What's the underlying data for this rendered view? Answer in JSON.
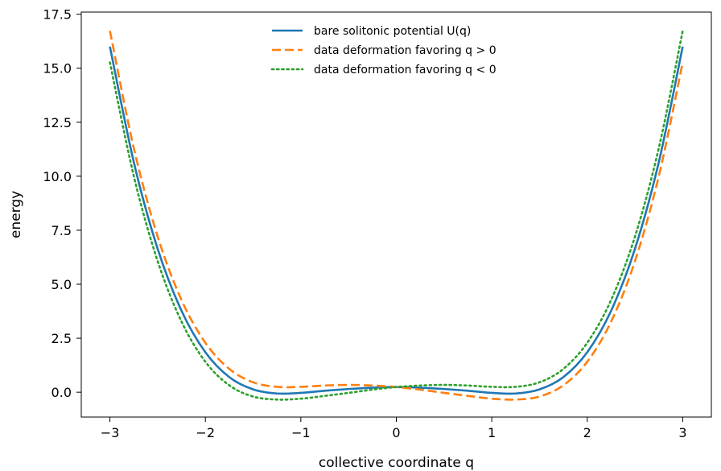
{
  "chart_data": {
    "type": "line",
    "xlabel": "collective coordinate q",
    "ylabel": "energy",
    "xlim": [
      -3.3,
      3.3
    ],
    "ylim": [
      -1.15,
      17.6
    ],
    "xticks": [
      -3,
      -2,
      -1,
      0,
      1,
      2,
      3
    ],
    "yticks": [
      0.0,
      2.5,
      5.0,
      7.5,
      10.0,
      12.5,
      15.0,
      17.5
    ],
    "xtick_labels": [
      "−3",
      "−2",
      "−1",
      "0",
      "1",
      "2",
      "3"
    ],
    "ytick_labels": [
      "0.0",
      "2.5",
      "5.0",
      "7.5",
      "10.0",
      "12.5",
      "15.0",
      "17.5"
    ],
    "grid": false,
    "legend_position": "top-center",
    "x": [
      -3.0,
      -2.75,
      -2.5,
      -2.25,
      -2.0,
      -1.75,
      -1.5,
      -1.25,
      -1.0,
      -0.75,
      -0.5,
      -0.25,
      0.0,
      0.25,
      0.5,
      0.75,
      1.0,
      1.25,
      1.5,
      1.75,
      2.0,
      2.25,
      2.5,
      2.75,
      3.0
    ],
    "series": [
      {
        "name": "bare solitonic potential U(q)",
        "color": "#1f77b4",
        "style": "solid",
        "values": [
          16.0,
          10.66,
          6.64,
          3.77,
          1.85,
          0.7,
          0.13,
          -0.06,
          -0.03,
          0.07,
          0.15,
          0.21,
          0.24,
          0.21,
          0.15,
          0.07,
          -0.03,
          -0.06,
          0.13,
          0.7,
          1.85,
          3.77,
          6.64,
          10.66,
          16.0
        ]
      },
      {
        "name": "data deformation favoring q > 0",
        "color": "#ff7f0e",
        "style": "dashed",
        "values": [
          16.73,
          11.31,
          7.21,
          4.27,
          2.29,
          1.08,
          0.46,
          0.25,
          0.25,
          0.31,
          0.34,
          0.31,
          0.24,
          0.12,
          -0.03,
          -0.17,
          -0.3,
          -0.34,
          -0.2,
          0.32,
          1.41,
          3.27,
          6.07,
          10.01,
          15.27
        ]
      },
      {
        "name": "data deformation favoring q < 0",
        "color": "#2ca02c",
        "style": "dotted",
        "values": [
          15.27,
          10.01,
          6.07,
          3.27,
          1.41,
          0.32,
          -0.2,
          -0.34,
          -0.3,
          -0.17,
          -0.03,
          0.12,
          0.24,
          0.31,
          0.34,
          0.31,
          0.25,
          0.25,
          0.46,
          1.08,
          2.29,
          4.27,
          7.21,
          11.31,
          16.73
        ]
      }
    ]
  }
}
